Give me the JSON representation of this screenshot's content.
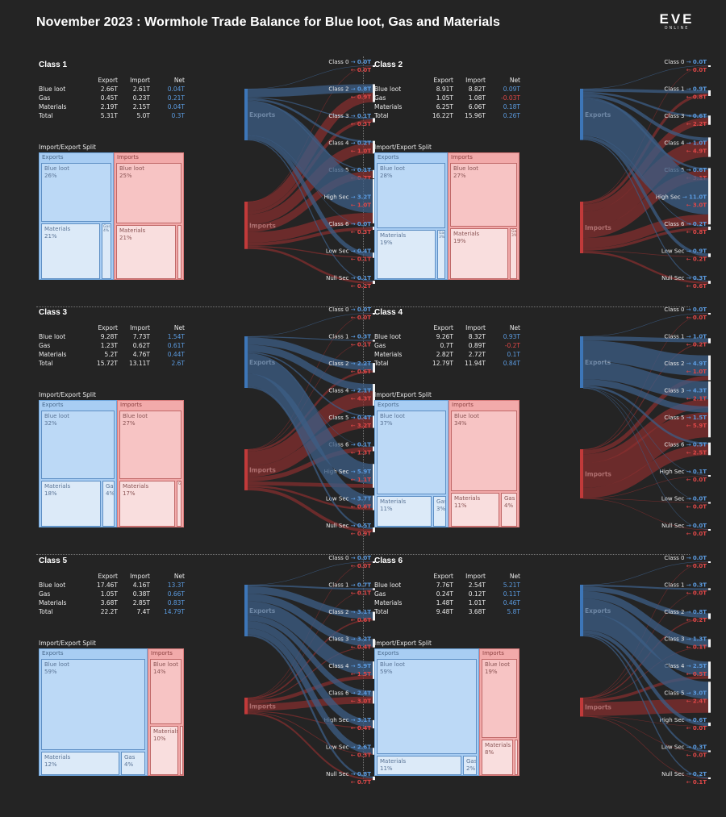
{
  "title": "November 2023 : Wormhole Trade Balance for Blue loot, Gas and Materials",
  "logo": {
    "main": "EVE",
    "sub": "ONLINE"
  },
  "labels": {
    "export": "Export",
    "import": "Import",
    "net": "Net",
    "split": "Import/Export Split",
    "exports": "Exports",
    "imports": "Imports",
    "bar_exports": "Exports",
    "bar_imports": "Imports"
  },
  "colors": {
    "export": "#5b9be0",
    "import": "#e04848",
    "background": "#242424"
  },
  "chart_data": [
    {
      "type": "table",
      "title": "Class 1",
      "stats": [
        [
          "Blue loot",
          "2.66T",
          "2.61T",
          "0.04T"
        ],
        [
          "Gas",
          "0.45T",
          "0.23T",
          "0.21T"
        ],
        [
          "Materials",
          "2.19T",
          "2.15T",
          "0.04T"
        ],
        [
          "Total",
          "5.31T",
          "5.0T",
          "0.3T"
        ]
      ],
      "split": {
        "exports": [
          {
            "name": "Blue loot",
            "pct": "26%",
            "v": 26
          },
          {
            "name": "Materials",
            "pct": "21%",
            "v": 21
          },
          {
            "name": "Gas",
            "pct": "4%",
            "v": 4
          }
        ],
        "imports": [
          {
            "name": "Blue loot",
            "pct": "25%",
            "v": 25
          },
          {
            "name": "Materials",
            "pct": "21%",
            "v": 21
          },
          {
            "name": "Gas",
            "pct": "",
            "v": 2
          }
        ]
      },
      "flows": [
        {
          "dest": "Class 0",
          "export": "0.0T",
          "import": "0.0T",
          "e": 0.0,
          "i": 0.0
        },
        {
          "dest": "Class 2",
          "export": "0.8T",
          "import": "0.9T",
          "e": 0.8,
          "i": 0.9
        },
        {
          "dest": "Class 3",
          "export": "0.1T",
          "import": "0.3T",
          "e": 0.1,
          "i": 0.3
        },
        {
          "dest": "Class 4",
          "export": "0.2T",
          "import": "1.0T",
          "e": 0.2,
          "i": 1.0
        },
        {
          "dest": "Class 5",
          "export": "0.1T",
          "import": "0.7T",
          "e": 0.1,
          "i": 0.7
        },
        {
          "dest": "High Sec",
          "export": "3.2T",
          "import": "1.0T",
          "e": 3.2,
          "i": 1.0
        },
        {
          "dest": "Class 6",
          "export": "0.0T",
          "import": "0.3T",
          "e": 0.0,
          "i": 0.3
        },
        {
          "dest": "Low Sec",
          "export": "0.4T",
          "import": "0.1T",
          "e": 0.4,
          "i": 0.1
        },
        {
          "dest": "Null Sec",
          "export": "0.1T",
          "import": "0.2T",
          "e": 0.1,
          "i": 0.2
        }
      ]
    },
    {
      "type": "table",
      "title": "Class 2",
      "stats": [
        [
          "Blue loot",
          "8.91T",
          "8.82T",
          "0.09T"
        ],
        [
          "Gas",
          "1.05T",
          "1.08T",
          "-0.03T"
        ],
        [
          "Materials",
          "6.25T",
          "6.06T",
          "0.18T"
        ],
        [
          "Total",
          "16.22T",
          "15.96T",
          "0.26T"
        ]
      ],
      "split": {
        "exports": [
          {
            "name": "Blue loot",
            "pct": "28%",
            "v": 28
          },
          {
            "name": "Materials",
            "pct": "19%",
            "v": 19
          },
          {
            "name": "Gas",
            "pct": "3%",
            "v": 3
          }
        ],
        "imports": [
          {
            "name": "Blue loot",
            "pct": "27%",
            "v": 27
          },
          {
            "name": "Materials",
            "pct": "19%",
            "v": 19
          },
          {
            "name": "Gas",
            "pct": "3%",
            "v": 3
          }
        ]
      },
      "flows": [
        {
          "dest": "Class 0",
          "export": "0.0T",
          "import": "0.0T",
          "e": 0.0,
          "i": 0.0
        },
        {
          "dest": "Class 1",
          "export": "0.9T",
          "import": "0.8T",
          "e": 0.9,
          "i": 0.8
        },
        {
          "dest": "Class 3",
          "export": "0.6T",
          "import": "2.2T",
          "e": 0.6,
          "i": 2.2
        },
        {
          "dest": "Class 4",
          "export": "1.0T",
          "import": "4.9T",
          "e": 1.0,
          "i": 4.9
        },
        {
          "dest": "Class 5",
          "export": "0.6T",
          "import": "3.1T",
          "e": 0.6,
          "i": 3.1
        },
        {
          "dest": "High Sec",
          "export": "11.0T",
          "import": "3.0T",
          "e": 11.0,
          "i": 3.0
        },
        {
          "dest": "Class 6",
          "export": "0.2T",
          "import": "0.8T",
          "e": 0.2,
          "i": 0.8
        },
        {
          "dest": "Low Sec",
          "export": "0.9T",
          "import": "0.2T",
          "e": 0.9,
          "i": 0.2
        },
        {
          "dest": "Null Sec",
          "export": "0.3T",
          "import": "0.6T",
          "e": 0.3,
          "i": 0.6
        }
      ]
    },
    {
      "type": "table",
      "title": "Class 3",
      "stats": [
        [
          "Blue loot",
          "9.28T",
          "7.73T",
          "1.54T"
        ],
        [
          "Gas",
          "1.23T",
          "0.62T",
          "0.61T"
        ],
        [
          "Materials",
          "5.2T",
          "4.76T",
          "0.44T"
        ],
        [
          "Total",
          "15.72T",
          "13.11T",
          "2.6T"
        ]
      ],
      "split": {
        "exports": [
          {
            "name": "Blue loot",
            "pct": "32%",
            "v": 32
          },
          {
            "name": "Materials",
            "pct": "18%",
            "v": 18
          },
          {
            "name": "Gas",
            "pct": "4%",
            "v": 4
          }
        ],
        "imports": [
          {
            "name": "Blue loot",
            "pct": "27%",
            "v": 27
          },
          {
            "name": "Materials",
            "pct": "17%",
            "v": 17
          },
          {
            "name": "Gas",
            "pct": "",
            "v": 2
          }
        ]
      },
      "flows": [
        {
          "dest": "Class 0",
          "export": "0.0T",
          "import": "0.0T",
          "e": 0.0,
          "i": 0.0
        },
        {
          "dest": "Class 1",
          "export": "0.3T",
          "import": "0.1T",
          "e": 0.3,
          "i": 0.1
        },
        {
          "dest": "Class 2",
          "export": "2.2T",
          "import": "0.6T",
          "e": 2.2,
          "i": 0.6
        },
        {
          "dest": "Class 4",
          "export": "2.1T",
          "import": "4.3T",
          "e": 2.1,
          "i": 4.3
        },
        {
          "dest": "Class 5",
          "export": "0.4T",
          "import": "3.2T",
          "e": 0.4,
          "i": 3.2
        },
        {
          "dest": "Class 6",
          "export": "0.1T",
          "import": "1.3T",
          "e": 0.1,
          "i": 1.3
        },
        {
          "dest": "High Sec",
          "export": "5.9T",
          "import": "1.1T",
          "e": 5.9,
          "i": 1.1
        },
        {
          "dest": "Low Sec",
          "export": "3.7T",
          "import": "0.6T",
          "e": 3.7,
          "i": 0.6
        },
        {
          "dest": "Null Sec",
          "export": "0.5T",
          "import": "0.9T",
          "e": 0.5,
          "i": 0.9
        }
      ]
    },
    {
      "type": "table",
      "title": "Class 4",
      "stats": [
        [
          "Blue loot",
          "9.26T",
          "8.32T",
          "0.93T"
        ],
        [
          "Gas",
          "0.7T",
          "0.89T",
          "-0.2T"
        ],
        [
          "Materials",
          "2.82T",
          "2.72T",
          "0.1T"
        ],
        [
          "Total",
          "12.79T",
          "11.94T",
          "0.84T"
        ]
      ],
      "split": {
        "exports": [
          {
            "name": "Blue loot",
            "pct": "37%",
            "v": 37
          },
          {
            "name": "Materials",
            "pct": "11%",
            "v": 11
          },
          {
            "name": "Gas",
            "pct": "3%",
            "v": 3
          }
        ],
        "imports": [
          {
            "name": "Blue loot",
            "pct": "34%",
            "v": 34
          },
          {
            "name": "Materials",
            "pct": "11%",
            "v": 11
          },
          {
            "name": "Gas",
            "pct": "4%",
            "v": 4
          }
        ]
      },
      "flows": [
        {
          "dest": "Class 0",
          "export": "0.0T",
          "import": "0.0T",
          "e": 0.0,
          "i": 0.0
        },
        {
          "dest": "Class 1",
          "export": "1.0T",
          "import": "0.2T",
          "e": 1.0,
          "i": 0.2
        },
        {
          "dest": "Class 2",
          "export": "4.9T",
          "import": "1.0T",
          "e": 4.9,
          "i": 1.0
        },
        {
          "dest": "Class 3",
          "export": "4.3T",
          "import": "2.1T",
          "e": 4.3,
          "i": 2.1
        },
        {
          "dest": "Class 5",
          "export": "1.5T",
          "import": "5.9T",
          "e": 1.5,
          "i": 5.9
        },
        {
          "dest": "Class 6",
          "export": "0.5T",
          "import": "2.5T",
          "e": 0.5,
          "i": 2.5
        },
        {
          "dest": "High Sec",
          "export": "0.1T",
          "import": "0.0T",
          "e": 0.1,
          "i": 0.0
        },
        {
          "dest": "Low Sec",
          "export": "0.0T",
          "import": "0.0T",
          "e": 0.0,
          "i": 0.0
        },
        {
          "dest": "Null Sec",
          "export": "0.0T",
          "import": "0.0T",
          "e": 0.0,
          "i": 0.0
        }
      ]
    },
    {
      "type": "table",
      "title": "Class 5",
      "stats": [
        [
          "Blue loot",
          "17.46T",
          "4.16T",
          "13.3T"
        ],
        [
          "Gas",
          "1.05T",
          "0.38T",
          "0.66T"
        ],
        [
          "Materials",
          "3.68T",
          "2.85T",
          "0.83T"
        ],
        [
          "Total",
          "22.2T",
          "7.4T",
          "14.79T"
        ]
      ],
      "split": {
        "exports": [
          {
            "name": "Blue loot",
            "pct": "59%",
            "v": 59
          },
          {
            "name": "Materials",
            "pct": "12%",
            "v": 12
          },
          {
            "name": "Gas",
            "pct": "4%",
            "v": 4
          }
        ],
        "imports": [
          {
            "name": "Blue loot",
            "pct": "14%",
            "v": 14
          },
          {
            "name": "Materials",
            "pct": "10%",
            "v": 10
          },
          {
            "name": "Gas",
            "pct": "",
            "v": 1
          }
        ]
      },
      "flows": [
        {
          "dest": "Class 0",
          "export": "0.0T",
          "import": "0.0T",
          "e": 0.0,
          "i": 0.0
        },
        {
          "dest": "Class 1",
          "export": "0.7T",
          "import": "0.1T",
          "e": 0.7,
          "i": 0.1
        },
        {
          "dest": "Class 2",
          "export": "3.1T",
          "import": "0.6T",
          "e": 3.1,
          "i": 0.6
        },
        {
          "dest": "Class 3",
          "export": "3.2T",
          "import": "0.4T",
          "e": 3.2,
          "i": 0.4
        },
        {
          "dest": "Class 4",
          "export": "5.9T",
          "import": "1.5T",
          "e": 5.9,
          "i": 1.5
        },
        {
          "dest": "Class 6",
          "export": "2.4T",
          "import": "3.0T",
          "e": 2.4,
          "i": 3.0
        },
        {
          "dest": "High Sec",
          "export": "3.1T",
          "import": "0.4T",
          "e": 3.1,
          "i": 0.4
        },
        {
          "dest": "Low Sec",
          "export": "2.6T",
          "import": "0.3T",
          "e": 2.6,
          "i": 0.3
        },
        {
          "dest": "Null Sec",
          "export": "0.8T",
          "import": "0.7T",
          "e": 0.8,
          "i": 0.7
        }
      ]
    },
    {
      "type": "table",
      "title": "Class 6",
      "stats": [
        [
          "Blue loot",
          "7.76T",
          "2.54T",
          "5.21T"
        ],
        [
          "Gas",
          "0.24T",
          "0.12T",
          "0.11T"
        ],
        [
          "Materials",
          "1.48T",
          "1.01T",
          "0.46T"
        ],
        [
          "Total",
          "9.48T",
          "3.68T",
          "5.8T"
        ]
      ],
      "split": {
        "exports": [
          {
            "name": "Blue loot",
            "pct": "59%",
            "v": 59
          },
          {
            "name": "Materials",
            "pct": "11%",
            "v": 11
          },
          {
            "name": "Gas",
            "pct": "2%",
            "v": 2
          }
        ],
        "imports": [
          {
            "name": "Blue loot",
            "pct": "19%",
            "v": 19
          },
          {
            "name": "Materials",
            "pct": "8%",
            "v": 8
          },
          {
            "name": "Gas",
            "pct": "",
            "v": 1
          }
        ]
      },
      "flows": [
        {
          "dest": "Class 0",
          "export": "0.0T",
          "import": "0.0T",
          "e": 0.0,
          "i": 0.0
        },
        {
          "dest": "Class 1",
          "export": "0.3T",
          "import": "0.0T",
          "e": 0.3,
          "i": 0.0
        },
        {
          "dest": "Class 2",
          "export": "0.8T",
          "import": "0.2T",
          "e": 0.8,
          "i": 0.2
        },
        {
          "dest": "Class 3",
          "export": "1.3T",
          "import": "0.1T",
          "e": 1.3,
          "i": 0.1
        },
        {
          "dest": "Class 4",
          "export": "2.5T",
          "import": "0.5T",
          "e": 2.5,
          "i": 0.5
        },
        {
          "dest": "Class 5",
          "export": "3.0T",
          "import": "2.4T",
          "e": 3.0,
          "i": 2.4
        },
        {
          "dest": "High Sec",
          "export": "0.6T",
          "import": "0.0T",
          "e": 0.6,
          "i": 0.0
        },
        {
          "dest": "Low Sec",
          "export": "0.3T",
          "import": "0.0T",
          "e": 0.3,
          "i": 0.0
        },
        {
          "dest": "Null Sec",
          "export": "0.2T",
          "import": "0.1T",
          "e": 0.2,
          "i": 0.1
        }
      ]
    }
  ]
}
